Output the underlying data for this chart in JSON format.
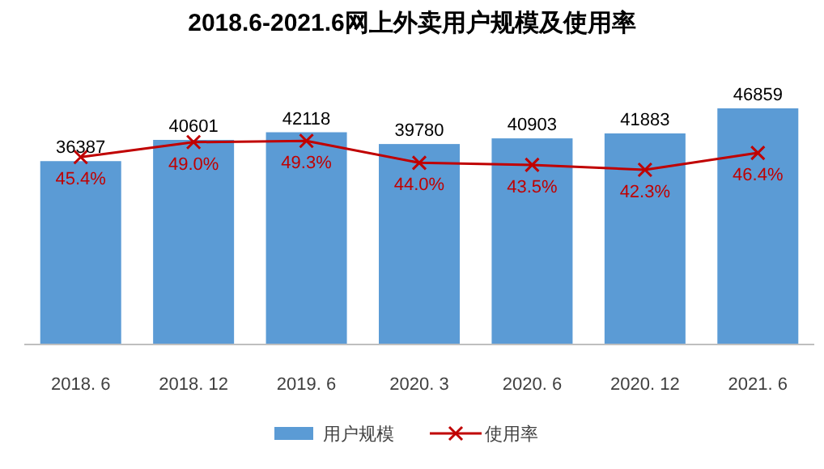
{
  "chart_data": {
    "type": "bar",
    "title": "2018.6-2021.6网上外卖用户规模及使用率",
    "categories": [
      "2018. 6",
      "2018. 12",
      "2019. 6",
      "2020. 3",
      "2020. 6",
      "2020. 12",
      "2021. 6"
    ],
    "series": [
      {
        "name": "用户规模",
        "color": "#5b9bd5",
        "values": [
          36387,
          40601,
          42118,
          39780,
          40903,
          41883,
          46859
        ]
      },
      {
        "name": "使用率",
        "type": "line",
        "axis": "y2",
        "color": "#c00000",
        "marker": "cross",
        "values": [
          45.4,
          49.0,
          49.3,
          44.0,
          43.5,
          42.3,
          46.4
        ],
        "value_labels": [
          "45.4%",
          "49.0%",
          "49.3%",
          "44.0%",
          "43.5%",
          "42.3%",
          "46.4%"
        ]
      }
    ],
    "data_labels": true,
    "legend": "bottom",
    "tick_labels": "x"
  }
}
